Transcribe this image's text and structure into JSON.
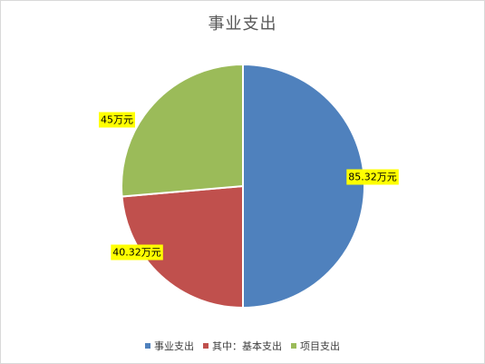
{
  "chart_data": {
    "type": "pie",
    "title": "事业支出",
    "start_angle_deg": 90,
    "direction": "clockwise",
    "legend_position": "bottom",
    "slices": [
      {
        "name": "事业支出",
        "value": 85.32,
        "label": "85.32万元",
        "color": "#4f81bd"
      },
      {
        "name": "其中：基本支出",
        "value": 40.32,
        "label": "40.32万元",
        "color": "#c0504d"
      },
      {
        "name": "项目支出",
        "value": 45,
        "label": "45万元",
        "color": "#9bbb59"
      }
    ]
  }
}
